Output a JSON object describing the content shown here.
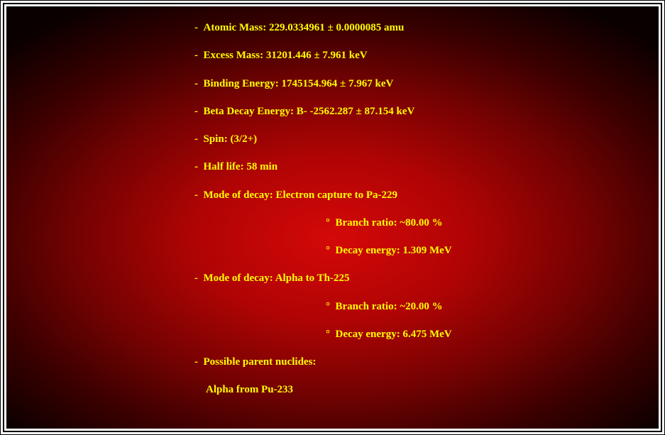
{
  "bullets": {
    "dash": "-  ",
    "deg": "°  "
  },
  "items": [
    "Atomic Mass: 229.0334961 ± 0.0000085 amu",
    "Excess Mass: 31201.446 ± 7.961 keV",
    "Binding Energy: 1745154.964 ± 7.967 keV",
    "Beta Decay Energy: B- -2562.287 ± 87.154 keV",
    "Spin: (3/2+)",
    "Half life: 58 min",
    "Mode of decay: Electron capture to Pa-229"
  ],
  "sub1": [
    "Branch ratio: ~80.00 %",
    "Decay energy: 1.309 MeV"
  ],
  "item_alpha": "Mode of decay: Alpha to Th-225",
  "sub2": [
    "Branch ratio: ~20.00 %",
    "Decay energy: 6.475 MeV"
  ],
  "parent_label": "Possible parent nuclides:",
  "parent_line": "Alpha from Pu-233",
  "style": {
    "text_color": "#ffff00",
    "font_family": "Times New Roman",
    "font_size_pt": 12,
    "font_weight": "bold",
    "background_gradient": {
      "type": "radial",
      "center_color": "#d40808",
      "edge_color": "#0a0000"
    },
    "frame_border_color": "#000000",
    "page_background": "#ffffff"
  }
}
